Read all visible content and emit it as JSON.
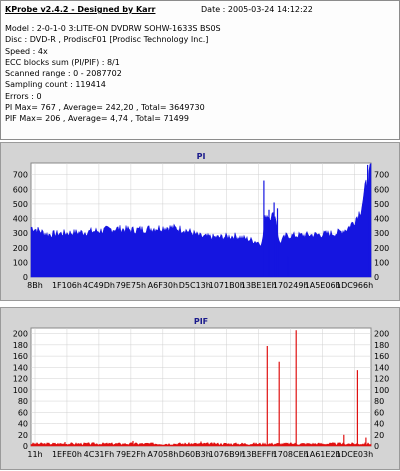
{
  "header": {
    "app_title": "KProbe v2.4.2 - Designed by Karr",
    "date": "Date : 2005-03-24 14:12:22"
  },
  "info_lines": [
    "Model : 2-0-1-0 3:LITE-ON DVDRW SOHW-1633S BS0S",
    "Disc : DVD-R , ProdiscF01 [Prodisc Technology Inc.]",
    "Speed : 4x",
    "ECC blocks sum (PI/PIF) : 8/1",
    "Scanned range : 0 - 2087702",
    "Sampling count : 119414",
    "Errors : 0",
    "PI Max= 767 , Average= 242,20 , Total= 3649730",
    "PIF Max= 206 , Average= 4,74 , Total= 71499"
  ],
  "colors": {
    "pi_series": "#1515e0",
    "pif_series": "#e01010",
    "plot_bg": "#ffffff",
    "grid": "#d0d0d0"
  },
  "chart_data": [
    {
      "type": "area",
      "title": "PI",
      "x_tick_labels": [
        "8Bh",
        "1F106h",
        "4C49Dh",
        "79E75h",
        "A6F30h",
        "D5C13h",
        "1071B0h",
        "13BE1Eh",
        "170249h",
        "1A5E06h",
        "1DC966h"
      ],
      "y_ticks_left": [
        0,
        100,
        200,
        300,
        400,
        500,
        600,
        700
      ],
      "y_ticks_right": [
        0,
        100,
        200,
        300,
        400,
        500,
        600,
        700
      ],
      "ylim": [
        0,
        780
      ],
      "x_range": [
        0,
        1
      ],
      "grid": true,
      "series": [
        {
          "name": "PI",
          "x": [
            0.0,
            0.05,
            0.1,
            0.15,
            0.2,
            0.25,
            0.3,
            0.35,
            0.4,
            0.45,
            0.5,
            0.55,
            0.6,
            0.65,
            0.68,
            0.69,
            0.72,
            0.73,
            0.75,
            0.8,
            0.85,
            0.9,
            0.93,
            0.95,
            0.97,
            0.985,
            1.0
          ],
          "y": [
            340,
            290,
            300,
            305,
            315,
            330,
            320,
            330,
            340,
            325,
            275,
            270,
            280,
            250,
            230,
            430,
            410,
            230,
            280,
            285,
            290,
            300,
            330,
            380,
            460,
            620,
            730
          ]
        }
      ],
      "spikes": [
        {
          "x": 0.685,
          "y": 660
        },
        {
          "x": 0.7,
          "y": 460
        },
        {
          "x": 0.715,
          "y": 510
        },
        {
          "x": 0.725,
          "y": 470
        },
        {
          "x": 0.755,
          "y": 140
        },
        {
          "x": 0.99,
          "y": 767
        }
      ]
    },
    {
      "type": "bar",
      "title": "PIF",
      "x_tick_labels": [
        "11h",
        "1EFE0h",
        "4C31Fh",
        "79E2Fh",
        "A7058h",
        "D60B3h",
        "1076B9h",
        "13BEFFh",
        "1708CEh",
        "1A61E2h",
        "1DCE03h"
      ],
      "y_ticks_left": [
        0,
        20,
        40,
        60,
        80,
        100,
        120,
        140,
        160,
        180,
        200
      ],
      "y_ticks_right": [
        0,
        20,
        40,
        60,
        80,
        100,
        120,
        140,
        160,
        180,
        200
      ],
      "ylim": [
        0,
        210
      ],
      "x_range": [
        0,
        1
      ],
      "grid": true,
      "baseline_level": 5,
      "spikes": [
        {
          "x": 0.1,
          "y": 7
        },
        {
          "x": 0.3,
          "y": 9
        },
        {
          "x": 0.5,
          "y": 8
        },
        {
          "x": 0.695,
          "y": 178
        },
        {
          "x": 0.73,
          "y": 150
        },
        {
          "x": 0.78,
          "y": 206
        },
        {
          "x": 0.92,
          "y": 20
        },
        {
          "x": 0.96,
          "y": 135
        },
        {
          "x": 0.985,
          "y": 15
        }
      ]
    }
  ]
}
